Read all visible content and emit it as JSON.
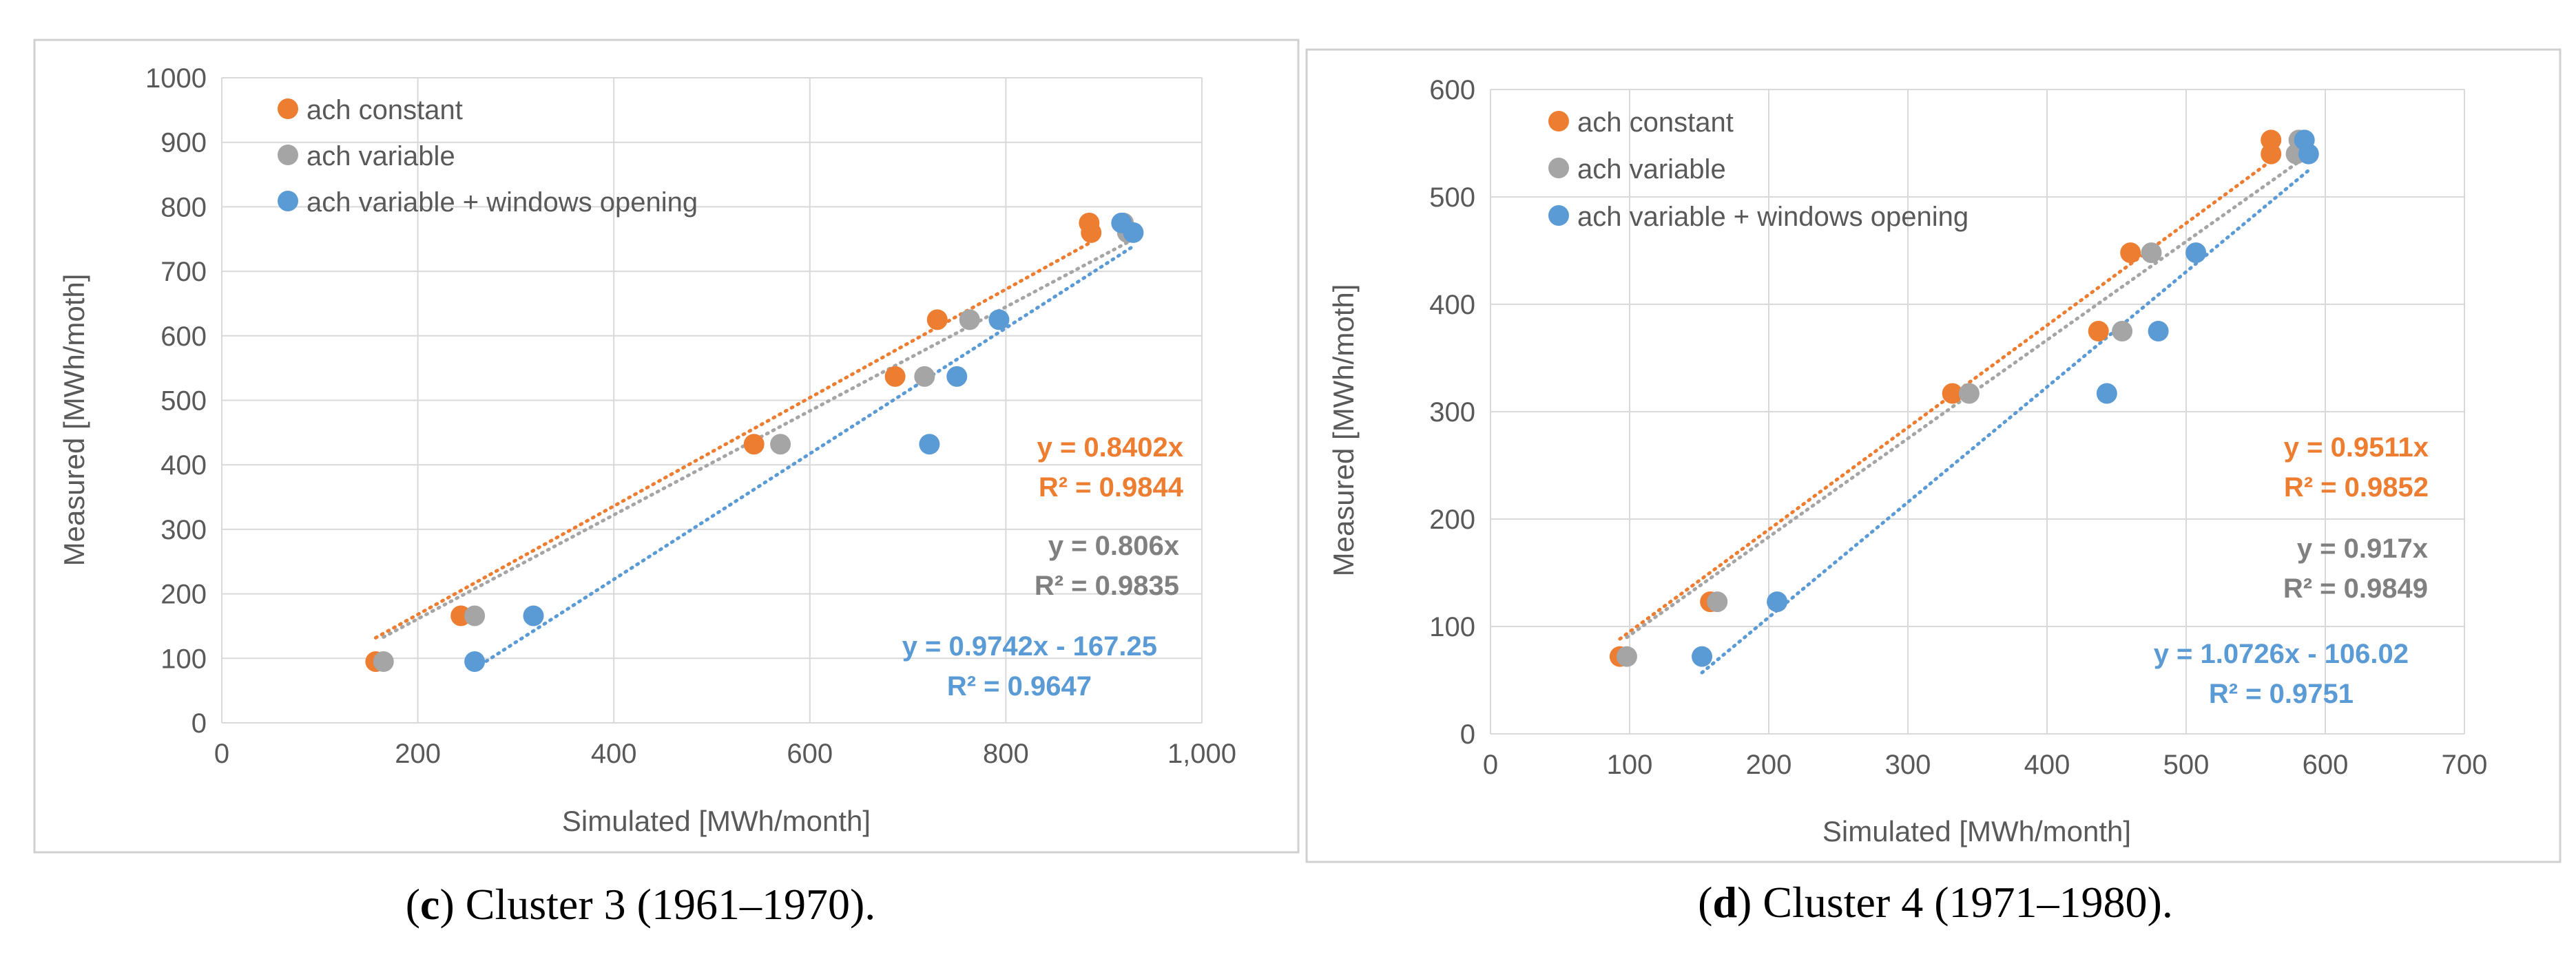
{
  "colors": {
    "ach_constant": "#ED7D31",
    "ach_variable": "#A5A5A5",
    "ach_variable_windows": "#5B9BD5",
    "axis_text": "#595959",
    "grid": "#D9D9D9",
    "frame": "#D0D0D0"
  },
  "chart_data": [
    {
      "type": "scatter",
      "panel": "c",
      "caption_letter": "c",
      "caption_text": " Cluster 3 (1961–1970).",
      "xlabel": "Simulated [MWh/month]",
      "ylabel": "Measured [MWh/moth]",
      "xlim": [
        0,
        1000
      ],
      "ylim": [
        0,
        1000
      ],
      "x_ticks": [
        0,
        200,
        400,
        600,
        800,
        1000
      ],
      "x_tick_labels": [
        "0",
        "200",
        "400",
        "600",
        "800",
        "1,000"
      ],
      "y_ticks": [
        0,
        100,
        200,
        300,
        400,
        500,
        600,
        700,
        800,
        900,
        1000
      ],
      "y_tick_labels": [
        "0",
        "100",
        "200",
        "300",
        "400",
        "500",
        "600",
        "700",
        "800",
        "900",
        "1000"
      ],
      "legend": [
        "ach constant",
        "ach variable",
        "ach variable +  windows opening"
      ],
      "series": [
        {
          "name": "ach constant",
          "color_key": "ach_constant",
          "x": [
            157,
            244,
            543,
            687,
            730,
            885,
            887
          ],
          "y": [
            95,
            166,
            432,
            537,
            625,
            775,
            760
          ],
          "trendline": {
            "slope": 0.8402,
            "intercept": 0,
            "x_range": [
              157,
              887
            ]
          },
          "equation": "y = 0.8402x",
          "r2": "R² = 0.9844"
        },
        {
          "name": "ach variable",
          "color_key": "ach_variable",
          "x": [
            165,
            258,
            570,
            717,
            763,
            920,
            924
          ],
          "y": [
            95,
            166,
            432,
            537,
            625,
            775,
            760
          ],
          "trendline": {
            "slope": 0.806,
            "intercept": 0,
            "x_range": [
              165,
              924
            ]
          },
          "equation": "y = 0.806x",
          "r2": "R² = 0.9835"
        },
        {
          "name": "ach variable +  windows opening",
          "color_key": "ach_variable_windows",
          "x": [
            258,
            318,
            722,
            750,
            793,
            918,
            930
          ],
          "y": [
            95,
            166,
            432,
            537,
            625,
            775,
            760
          ],
          "trendline": {
            "slope": 0.9742,
            "intercept": -167.25,
            "x_range": [
              258,
              930
            ]
          },
          "equation": "y = 0.9742x - 167.25",
          "r2": "R² = 0.9647"
        }
      ]
    },
    {
      "type": "scatter",
      "panel": "d",
      "caption_letter": "d",
      "caption_text": " Cluster 4 (1971–1980).",
      "xlabel": "Simulated [MWh/month]",
      "ylabel": "Measured [MWh/moth]",
      "xlim": [
        0,
        700
      ],
      "ylim": [
        0,
        600
      ],
      "x_ticks": [
        0,
        100,
        200,
        300,
        400,
        500,
        600,
        700
      ],
      "x_tick_labels": [
        "0",
        "100",
        "200",
        "300",
        "400",
        "500",
        "600",
        "700"
      ],
      "y_ticks": [
        0,
        100,
        200,
        300,
        400,
        500,
        600
      ],
      "y_tick_labels": [
        "0",
        "100",
        "200",
        "300",
        "400",
        "500",
        "600"
      ],
      "legend": [
        "ach constant",
        "ach variable",
        "ach variable +  windows opening"
      ],
      "series": [
        {
          "name": "ach constant",
          "color_key": "ach_constant",
          "x": [
            93,
            158,
            332,
            437,
            460,
            561,
            561
          ],
          "y": [
            72,
            123,
            317,
            375,
            448,
            540,
            553
          ],
          "trendline": {
            "slope": 0.9511,
            "intercept": 0,
            "x_range": [
              93,
              561
            ]
          },
          "equation": "y = 0.9511x",
          "r2": "R² = 0.9852"
        },
        {
          "name": "ach variable",
          "color_key": "ach_variable",
          "x": [
            98,
            163,
            344,
            454,
            475,
            579,
            581
          ],
          "y": [
            72,
            123,
            317,
            375,
            448,
            540,
            553
          ],
          "trendline": {
            "slope": 0.917,
            "intercept": 0,
            "x_range": [
              98,
              581
            ]
          },
          "equation": "y = 0.917x",
          "r2": "R² = 0.9849"
        },
        {
          "name": "ach variable +  windows opening",
          "color_key": "ach_variable_windows",
          "x": [
            152,
            206,
            443,
            480,
            507,
            585,
            588
          ],
          "y": [
            72,
            123,
            317,
            375,
            448,
            553,
            540
          ],
          "trendline": {
            "slope": 1.0726,
            "intercept": -106.02,
            "x_range": [
              152,
              588
            ]
          },
          "equation": "y = 1.0726x - 106.02",
          "r2": "R² = 0.9751"
        }
      ]
    }
  ]
}
